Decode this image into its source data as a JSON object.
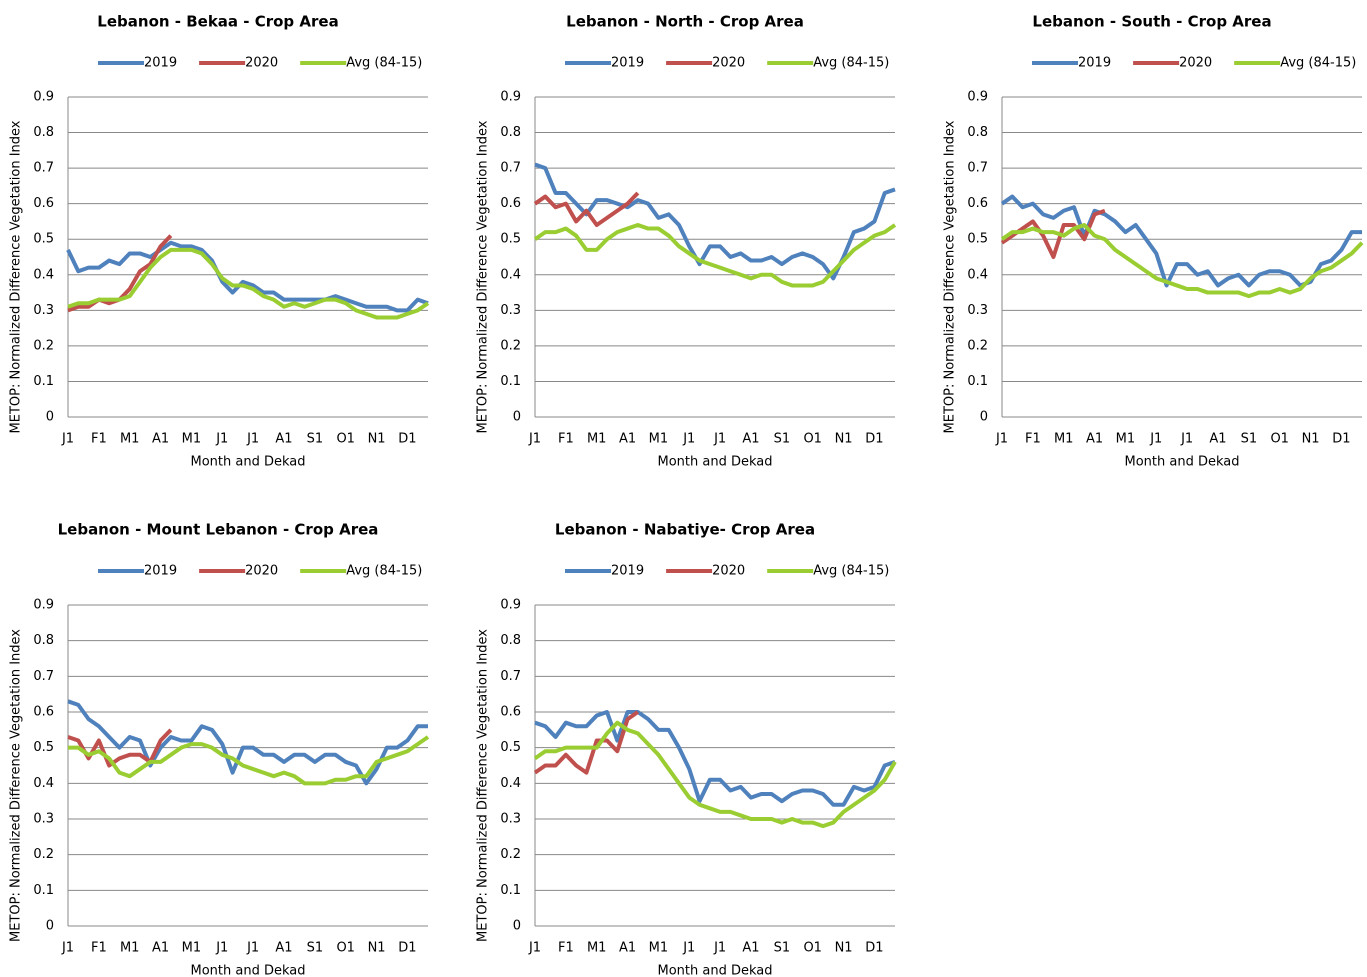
{
  "chart_data": [
    {
      "type": "line",
      "title": "Lebanon - Bekaa - Crop Area",
      "x_label": "Month and Dekad",
      "y_label": "METOP: Normalized Difference Vegetation Index",
      "categories": [
        "J1",
        null,
        null,
        "F1",
        null,
        null,
        "M1",
        null,
        null,
        "A1",
        null,
        null,
        "M1",
        null,
        null,
        "J1",
        null,
        null,
        "J1",
        null,
        null,
        "A1",
        null,
        null,
        "S1",
        null,
        null,
        "O1",
        null,
        null,
        "N1",
        null,
        null,
        "D1",
        null,
        null
      ],
      "ylim": [
        0,
        0.9
      ],
      "yticks": [
        0,
        0.1,
        0.2,
        0.3,
        0.4,
        0.5,
        0.6,
        0.7,
        0.8,
        0.9
      ],
      "grid": true,
      "series": [
        {
          "name": "2019",
          "color": "#4f81bd",
          "values": [
            0.47,
            0.41,
            0.42,
            0.42,
            0.44,
            0.43,
            0.46,
            0.46,
            0.45,
            0.47,
            0.49,
            0.48,
            0.48,
            0.47,
            0.44,
            0.38,
            0.35,
            0.38,
            0.37,
            0.35,
            0.35,
            0.33,
            0.33,
            0.33,
            0.33,
            0.33,
            0.34,
            0.33,
            0.32,
            0.31,
            0.31,
            0.31,
            0.3,
            0.3,
            0.33,
            0.32
          ]
        },
        {
          "name": "2020",
          "color": "#c0504d",
          "values": [
            0.3,
            0.31,
            0.31,
            0.33,
            0.32,
            0.33,
            0.36,
            0.41,
            0.43,
            0.48,
            0.51,
            null,
            null,
            null,
            null,
            null,
            null,
            null,
            null,
            null,
            null,
            null,
            null,
            null,
            null,
            null,
            null,
            null,
            null,
            null,
            null,
            null,
            null,
            null,
            null,
            null
          ]
        },
        {
          "name": "Avg (84-15)",
          "color": "#9acd32",
          "values": [
            0.31,
            0.32,
            0.32,
            0.33,
            0.33,
            0.33,
            0.34,
            0.38,
            0.42,
            0.45,
            0.47,
            0.47,
            0.47,
            0.46,
            0.43,
            0.39,
            0.37,
            0.37,
            0.36,
            0.34,
            0.33,
            0.31,
            0.32,
            0.31,
            0.32,
            0.33,
            0.33,
            0.32,
            0.3,
            0.29,
            0.28,
            0.28,
            0.28,
            0.29,
            0.3,
            0.32
          ]
        }
      ]
    },
    {
      "type": "line",
      "title": "Lebanon - North - Crop Area",
      "x_label": "Month and Dekad",
      "y_label": "METOP: Normalized Difference Vegetation Index",
      "categories": [
        "J1",
        null,
        null,
        "F1",
        null,
        null,
        "M1",
        null,
        null,
        "A1",
        null,
        null,
        "M1",
        null,
        null,
        "J1",
        null,
        null,
        "J1",
        null,
        null,
        "A1",
        null,
        null,
        "S1",
        null,
        null,
        "O1",
        null,
        null,
        "N1",
        null,
        null,
        "D1",
        null,
        null
      ],
      "ylim": [
        0,
        0.9
      ],
      "yticks": [
        0,
        0.1,
        0.2,
        0.3,
        0.4,
        0.5,
        0.6,
        0.7,
        0.8,
        0.9
      ],
      "grid": true,
      "series": [
        {
          "name": "2019",
          "color": "#4f81bd",
          "values": [
            0.71,
            0.7,
            0.63,
            0.63,
            0.6,
            0.57,
            0.61,
            0.61,
            0.6,
            0.59,
            0.61,
            0.6,
            0.56,
            0.57,
            0.54,
            0.48,
            0.43,
            0.48,
            0.48,
            0.45,
            0.46,
            0.44,
            0.44,
            0.45,
            0.43,
            0.45,
            0.46,
            0.45,
            0.43,
            0.39,
            0.45,
            0.52,
            0.53,
            0.55,
            0.63,
            0.64
          ]
        },
        {
          "name": "2020",
          "color": "#c0504d",
          "values": [
            0.6,
            0.62,
            0.59,
            0.6,
            0.55,
            0.58,
            0.54,
            0.56,
            0.58,
            0.6,
            0.63,
            null,
            null,
            null,
            null,
            null,
            null,
            null,
            null,
            null,
            null,
            null,
            null,
            null,
            null,
            null,
            null,
            null,
            null,
            null,
            null,
            null,
            null,
            null,
            null,
            null
          ]
        },
        {
          "name": "Avg (84-15)",
          "color": "#9acd32",
          "values": [
            0.5,
            0.52,
            0.52,
            0.53,
            0.51,
            0.47,
            0.47,
            0.5,
            0.52,
            0.53,
            0.54,
            0.53,
            0.53,
            0.51,
            0.48,
            0.46,
            0.44,
            0.43,
            0.42,
            0.41,
            0.4,
            0.39,
            0.4,
            0.4,
            0.38,
            0.37,
            0.37,
            0.37,
            0.38,
            0.41,
            0.44,
            0.47,
            0.49,
            0.51,
            0.52,
            0.54
          ]
        }
      ]
    },
    {
      "type": "line",
      "title": "Lebanon - South - Crop Area",
      "x_label": "Month and Dekad",
      "y_label": "METOP: Normalized Difference Vegetation Index",
      "categories": [
        "J1",
        null,
        null,
        "F1",
        null,
        null,
        "M1",
        null,
        null,
        "A1",
        null,
        null,
        "M1",
        null,
        null,
        "J1",
        null,
        null,
        "J1",
        null,
        null,
        "A1",
        null,
        null,
        "S1",
        null,
        null,
        "O1",
        null,
        null,
        "N1",
        null,
        null,
        "D1",
        null,
        null
      ],
      "ylim": [
        0,
        0.9
      ],
      "yticks": [
        0,
        0.1,
        0.2,
        0.3,
        0.4,
        0.5,
        0.6,
        0.7,
        0.8,
        0.9
      ],
      "grid": true,
      "series": [
        {
          "name": "2019",
          "color": "#4f81bd",
          "values": [
            0.6,
            0.62,
            0.59,
            0.6,
            0.57,
            0.56,
            0.58,
            0.59,
            0.51,
            0.58,
            0.57,
            0.55,
            0.52,
            0.54,
            0.5,
            0.46,
            0.37,
            0.43,
            0.43,
            0.4,
            0.41,
            0.37,
            0.39,
            0.4,
            0.37,
            0.4,
            0.41,
            0.41,
            0.4,
            0.37,
            0.38,
            0.43,
            0.44,
            0.47,
            0.52,
            0.52
          ]
        },
        {
          "name": "2020",
          "color": "#c0504d",
          "values": [
            0.49,
            0.51,
            0.53,
            0.55,
            0.51,
            0.45,
            0.54,
            0.54,
            0.5,
            0.57,
            0.58,
            null,
            null,
            null,
            null,
            null,
            null,
            null,
            null,
            null,
            null,
            null,
            null,
            null,
            null,
            null,
            null,
            null,
            null,
            null,
            null,
            null,
            null,
            null,
            null,
            null
          ]
        },
        {
          "name": "Avg (84-15)",
          "color": "#9acd32",
          "values": [
            0.5,
            0.52,
            0.52,
            0.53,
            0.52,
            0.52,
            0.51,
            0.53,
            0.54,
            0.51,
            0.5,
            0.47,
            0.45,
            0.43,
            0.41,
            0.39,
            0.38,
            0.37,
            0.36,
            0.36,
            0.35,
            0.35,
            0.35,
            0.35,
            0.34,
            0.35,
            0.35,
            0.36,
            0.35,
            0.36,
            0.39,
            0.41,
            0.42,
            0.44,
            0.46,
            0.49
          ]
        }
      ]
    },
    {
      "type": "line",
      "title": "Lebanon - Mount Lebanon - Crop Area",
      "x_label": "Month and Dekad",
      "y_label": "METOP: Normalized Difference Vegetation Index",
      "categories": [
        "J1",
        null,
        null,
        "F1",
        null,
        null,
        "M1",
        null,
        null,
        "A1",
        null,
        null,
        "M1",
        null,
        null,
        "J1",
        null,
        null,
        "J1",
        null,
        null,
        "A1",
        null,
        null,
        "S1",
        null,
        null,
        "O1",
        null,
        null,
        "N1",
        null,
        null,
        "D1",
        null,
        null
      ],
      "ylim": [
        0,
        0.9
      ],
      "yticks": [
        0,
        0.1,
        0.2,
        0.3,
        0.4,
        0.5,
        0.6,
        0.7,
        0.8,
        0.9
      ],
      "grid": true,
      "series": [
        {
          "name": "2019",
          "color": "#4f81bd",
          "values": [
            0.63,
            0.62,
            0.58,
            0.56,
            0.53,
            0.5,
            0.53,
            0.52,
            0.45,
            0.5,
            0.53,
            0.52,
            0.52,
            0.56,
            0.55,
            0.51,
            0.43,
            0.5,
            0.5,
            0.48,
            0.48,
            0.46,
            0.48,
            0.48,
            0.46,
            0.48,
            0.48,
            0.46,
            0.45,
            0.4,
            0.44,
            0.5,
            0.5,
            0.52,
            0.56,
            0.56
          ]
        },
        {
          "name": "2020",
          "color": "#c0504d",
          "values": [
            0.53,
            0.52,
            0.47,
            0.52,
            0.45,
            0.47,
            0.48,
            0.48,
            0.46,
            0.52,
            0.55,
            null,
            null,
            null,
            null,
            null,
            null,
            null,
            null,
            null,
            null,
            null,
            null,
            null,
            null,
            null,
            null,
            null,
            null,
            null,
            null,
            null,
            null,
            null,
            null,
            null
          ]
        },
        {
          "name": "Avg (84-15)",
          "color": "#9acd32",
          "values": [
            0.5,
            0.5,
            0.48,
            0.49,
            0.47,
            0.43,
            0.42,
            0.44,
            0.46,
            0.46,
            0.48,
            0.5,
            0.51,
            0.51,
            0.5,
            0.48,
            0.47,
            0.45,
            0.44,
            0.43,
            0.42,
            0.43,
            0.42,
            0.4,
            0.4,
            0.4,
            0.41,
            0.41,
            0.42,
            0.42,
            0.46,
            0.47,
            0.48,
            0.49,
            0.51,
            0.53
          ]
        }
      ]
    },
    {
      "type": "line",
      "title": "Lebanon - Nabatiye- Crop Area",
      "x_label": "Month and Dekad",
      "y_label": "METOP: Normalized Difference Vegetation Index",
      "categories": [
        "J1",
        null,
        null,
        "F1",
        null,
        null,
        "M1",
        null,
        null,
        "A1",
        null,
        null,
        "M1",
        null,
        null,
        "J1",
        null,
        null,
        "J1",
        null,
        null,
        "A1",
        null,
        null,
        "S1",
        null,
        null,
        "O1",
        null,
        null,
        "N1",
        null,
        null,
        "D1",
        null,
        null
      ],
      "ylim": [
        0,
        0.9
      ],
      "yticks": [
        0,
        0.1,
        0.2,
        0.3,
        0.4,
        0.5,
        0.6,
        0.7,
        0.8,
        0.9
      ],
      "grid": true,
      "series": [
        {
          "name": "2019",
          "color": "#4f81bd",
          "values": [
            0.57,
            0.56,
            0.53,
            0.57,
            0.56,
            0.56,
            0.59,
            0.6,
            0.52,
            0.6,
            0.6,
            0.58,
            0.55,
            0.55,
            0.5,
            0.44,
            0.35,
            0.41,
            0.41,
            0.38,
            0.39,
            0.36,
            0.37,
            0.37,
            0.35,
            0.37,
            0.38,
            0.38,
            0.37,
            0.34,
            0.34,
            0.39,
            0.38,
            0.39,
            0.45,
            0.46
          ]
        },
        {
          "name": "2020",
          "color": "#c0504d",
          "values": [
            0.43,
            0.45,
            0.45,
            0.48,
            0.45,
            0.43,
            0.52,
            0.52,
            0.49,
            0.58,
            0.6,
            null,
            null,
            null,
            null,
            null,
            null,
            null,
            null,
            null,
            null,
            null,
            null,
            null,
            null,
            null,
            null,
            null,
            null,
            null,
            null,
            null,
            null,
            null,
            null,
            null
          ]
        },
        {
          "name": "Avg (84-15)",
          "color": "#9acd32",
          "values": [
            0.47,
            0.49,
            0.49,
            0.5,
            0.5,
            0.5,
            0.5,
            0.54,
            0.57,
            0.55,
            0.54,
            0.51,
            0.48,
            0.44,
            0.4,
            0.36,
            0.34,
            0.33,
            0.32,
            0.32,
            0.31,
            0.3,
            0.3,
            0.3,
            0.29,
            0.3,
            0.29,
            0.29,
            0.28,
            0.29,
            0.32,
            0.34,
            0.36,
            0.38,
            0.41,
            0.46
          ]
        }
      ]
    }
  ]
}
